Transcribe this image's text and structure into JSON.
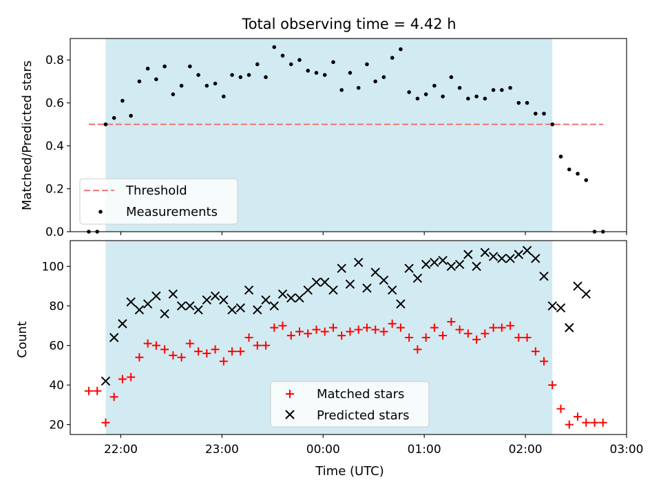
{
  "colors": {
    "shade": "#add8e6",
    "threshold": "#f08080",
    "matched": "#ff0000",
    "predicted": "#000000",
    "measurement": "#000000"
  },
  "chart_data": [
    {
      "type": "scatter",
      "title": "Total observing time = 4.42 h",
      "xlabel": "",
      "ylabel": "Matched/Predicted stars",
      "ylim": [
        0,
        0.9
      ],
      "yticks": [
        "0.0",
        "0.2",
        "0.4",
        "0.6",
        "0.8"
      ],
      "shaded_span": [
        "21:51",
        "02:16"
      ],
      "legend": {
        "placement": "lower-left",
        "entries": [
          "Threshold",
          "Measurements"
        ]
      },
      "series": [
        {
          "name": "Threshold",
          "kind": "dashed-line",
          "x": [
            "21:41",
            "02:46"
          ],
          "y": [
            0.5,
            0.5
          ]
        },
        {
          "name": "Measurements",
          "kind": "dots",
          "x": [
            "21:41",
            "21:46",
            "21:51",
            "21:56",
            "22:01",
            "22:06",
            "22:11",
            "22:16",
            "22:21",
            "22:26",
            "22:31",
            "22:36",
            "22:41",
            "22:46",
            "22:51",
            "22:56",
            "23:01",
            "23:06",
            "23:11",
            "23:16",
            "23:21",
            "23:26",
            "23:31",
            "23:36",
            "23:41",
            "23:46",
            "23:51",
            "23:56",
            "00:01",
            "00:06",
            "00:11",
            "00:16",
            "00:21",
            "00:26",
            "00:31",
            "00:36",
            "00:41",
            "00:46",
            "00:51",
            "00:56",
            "01:01",
            "01:06",
            "01:11",
            "01:16",
            "01:21",
            "01:26",
            "01:31",
            "01:36",
            "01:41",
            "01:46",
            "01:51",
            "01:56",
            "02:01",
            "02:06",
            "02:11",
            "02:16",
            "02:21",
            "02:26",
            "02:31",
            "02:36",
            "02:41",
            "02:46"
          ],
          "y": [
            0.0,
            0.0,
            0.5,
            0.53,
            0.61,
            0.54,
            0.7,
            0.76,
            0.71,
            0.77,
            0.64,
            0.68,
            0.77,
            0.73,
            0.68,
            0.69,
            0.63,
            0.73,
            0.72,
            0.73,
            0.78,
            0.72,
            0.86,
            0.82,
            0.78,
            0.8,
            0.75,
            0.74,
            0.73,
            0.79,
            0.66,
            0.74,
            0.67,
            0.78,
            0.7,
            0.72,
            0.81,
            0.85,
            0.65,
            0.62,
            0.64,
            0.68,
            0.63,
            0.72,
            0.67,
            0.62,
            0.63,
            0.62,
            0.66,
            0.66,
            0.67,
            0.6,
            0.6,
            0.55,
            0.55,
            0.5,
            0.35,
            0.29,
            0.27,
            0.24,
            0.0,
            0.0
          ]
        }
      ]
    },
    {
      "type": "scatter",
      "title": "",
      "xlabel": "Time (UTC)",
      "ylabel": "Count",
      "xlim": [
        "21:30",
        "03:00"
      ],
      "xticks": [
        "22:00",
        "23:00",
        "00:00",
        "01:00",
        "02:00",
        "03:00"
      ],
      "ylim": [
        15,
        113
      ],
      "yticks": [
        "20",
        "40",
        "60",
        "80",
        "100"
      ],
      "shaded_span": [
        "21:51",
        "02:16"
      ],
      "legend": {
        "placement": "lower-center",
        "entries": [
          "Matched stars",
          "Predicted stars"
        ]
      },
      "series": [
        {
          "name": "Matched stars",
          "marker": "+",
          "x": [
            "21:41",
            "21:46",
            "21:51",
            "21:56",
            "22:01",
            "22:06",
            "22:11",
            "22:16",
            "22:21",
            "22:26",
            "22:31",
            "22:36",
            "22:41",
            "22:46",
            "22:51",
            "22:56",
            "23:01",
            "23:06",
            "23:11",
            "23:16",
            "23:21",
            "23:26",
            "23:31",
            "23:36",
            "23:41",
            "23:46",
            "23:51",
            "23:56",
            "00:01",
            "00:06",
            "00:11",
            "00:16",
            "00:21",
            "00:26",
            "00:31",
            "00:36",
            "00:41",
            "00:46",
            "00:51",
            "00:56",
            "01:01",
            "01:06",
            "01:11",
            "01:16",
            "01:21",
            "01:26",
            "01:31",
            "01:36",
            "01:41",
            "01:46",
            "01:51",
            "01:56",
            "02:01",
            "02:06",
            "02:11",
            "02:16",
            "02:21",
            "02:26",
            "02:31",
            "02:36",
            "02:41",
            "02:46"
          ],
          "y": [
            37,
            37,
            21,
            34,
            43,
            44,
            54,
            61,
            60,
            58,
            55,
            54,
            61,
            57,
            56,
            58,
            52,
            57,
            57,
            64,
            60,
            60,
            69,
            70,
            65,
            67,
            66,
            68,
            67,
            69,
            65,
            67,
            68,
            69,
            68,
            67,
            71,
            69,
            64,
            58,
            64,
            69,
            65,
            72,
            68,
            66,
            63,
            66,
            69,
            69,
            70,
            64,
            64,
            57,
            52,
            40,
            28,
            20,
            24,
            21,
            21,
            21
          ]
        },
        {
          "name": "Predicted stars",
          "marker": "x",
          "x": [
            "21:51",
            "21:56",
            "22:01",
            "22:06",
            "22:11",
            "22:16",
            "22:21",
            "22:26",
            "22:31",
            "22:36",
            "22:41",
            "22:46",
            "22:51",
            "22:56",
            "23:01",
            "23:06",
            "23:11",
            "23:16",
            "23:21",
            "23:26",
            "23:31",
            "23:36",
            "23:41",
            "23:46",
            "23:51",
            "23:56",
            "00:01",
            "00:06",
            "00:11",
            "00:16",
            "00:21",
            "00:26",
            "00:31",
            "00:36",
            "00:41",
            "00:46",
            "00:51",
            "00:56",
            "01:01",
            "01:06",
            "01:11",
            "01:16",
            "01:21",
            "01:26",
            "01:31",
            "01:36",
            "01:41",
            "01:46",
            "01:51",
            "01:56",
            "02:01",
            "02:06",
            "02:11",
            "02:16",
            "02:21",
            "02:26",
            "02:31",
            "02:36"
          ],
          "y": [
            42,
            64,
            71,
            82,
            78,
            81,
            85,
            76,
            86,
            80,
            80,
            78,
            83,
            85,
            83,
            78,
            79,
            88,
            78,
            83,
            80,
            86,
            84,
            84,
            88,
            92,
            92,
            88,
            99,
            91,
            102,
            89,
            97,
            93,
            88,
            81,
            99,
            94,
            101,
            102,
            103,
            100,
            101,
            106,
            100,
            107,
            105,
            104,
            104,
            106,
            108,
            104,
            95,
            80,
            79,
            69,
            90,
            86
          ]
        }
      ]
    }
  ]
}
